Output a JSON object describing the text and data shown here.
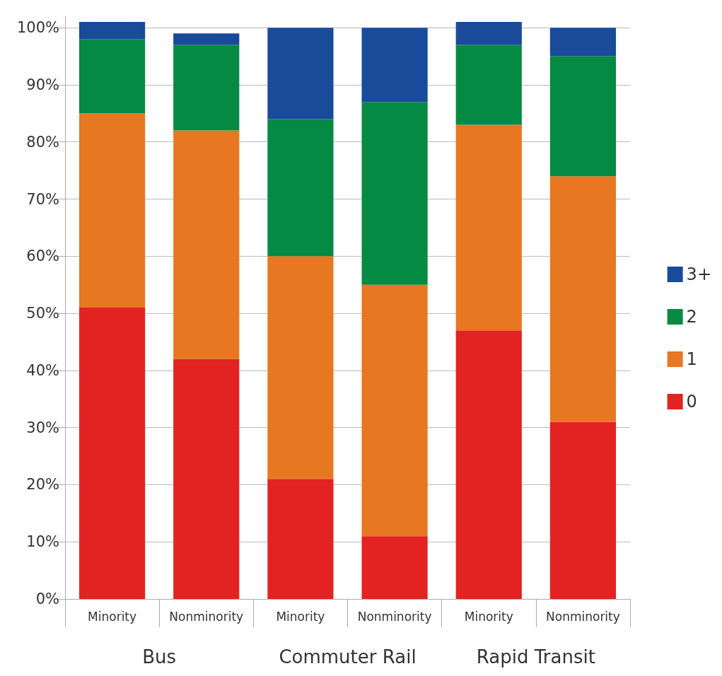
{
  "chart_data": {
    "type": "bar",
    "stacked": true,
    "categories": [
      "Minority",
      "Nonminority",
      "Minority",
      "Nonminority",
      "Minority",
      "Nonminority"
    ],
    "series": [
      {
        "name": "0",
        "color": "#e32322",
        "values": [
          51,
          42,
          21,
          11,
          47,
          31
        ]
      },
      {
        "name": "1",
        "color": "#e87722",
        "values": [
          34,
          40,
          39,
          44,
          36,
          43
        ]
      },
      {
        "name": "2",
        "color": "#058a44",
        "values": [
          13,
          15,
          24,
          32,
          14,
          21
        ]
      },
      {
        "name": "3+",
        "color": "#1a4a9a",
        "values": [
          3,
          2,
          16,
          13,
          4,
          5
        ]
      }
    ],
    "ylim": [
      0,
      102
    ],
    "yticks": [
      {
        "value": 0,
        "label": "0%"
      },
      {
        "value": 10,
        "label": "10%"
      },
      {
        "value": 20,
        "label": "20%"
      },
      {
        "value": 30,
        "label": "30%"
      },
      {
        "value": 40,
        "label": "40%"
      },
      {
        "value": 50,
        "label": "50%"
      },
      {
        "value": 60,
        "label": "60%"
      },
      {
        "value": 70,
        "label": "70%"
      },
      {
        "value": 80,
        "label": "80%"
      },
      {
        "value": 90,
        "label": "90%"
      },
      {
        "value": 100,
        "label": "100%"
      }
    ],
    "annotations": [
      "Bus",
      "Commuter Rail",
      "Rapid Transit"
    ],
    "grid": "y",
    "legend": "right"
  }
}
